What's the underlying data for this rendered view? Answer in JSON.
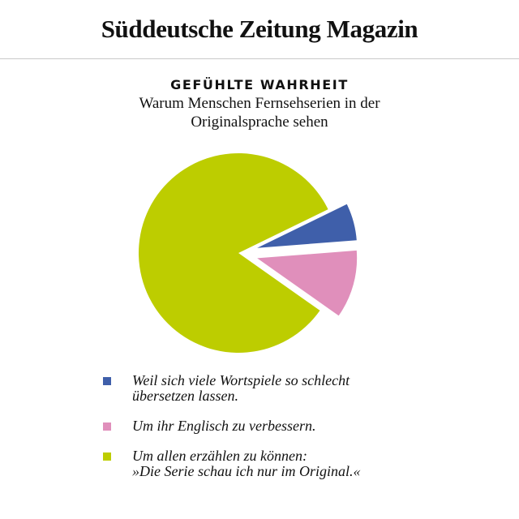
{
  "masthead": {
    "title": "Süddeutsche Zeitung Magazin"
  },
  "colors": {
    "wortspiele": "#3f5faa",
    "englisch": "#e08fbb",
    "erzaehlen": "#bdcd00"
  },
  "chart_data": {
    "type": "pie",
    "title": "GEFÜHLTE WAHRHEIT",
    "subtitle": "Warum Menschen Fernsehserien in der Originalsprache sehen",
    "slices": [
      {
        "label": "Weil sich viele Wortspiele so schlecht\nübersetzen lassen.",
        "value": 6,
        "color": "#3f5faa",
        "exploded": true
      },
      {
        "label": "Um ihr Englisch zu verbessern.",
        "value": 11,
        "color": "#e08fbb",
        "exploded": true
      },
      {
        "label": "Um allen erzählen zu können:\n»Die Serie schau ich nur im Original.«",
        "value": 83,
        "color": "#bdcd00",
        "exploded": false
      }
    ],
    "legend_position": "bottom"
  }
}
